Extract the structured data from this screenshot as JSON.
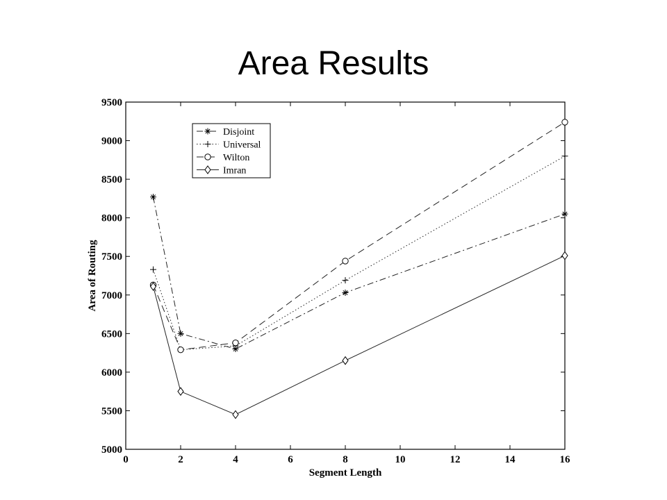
{
  "slide": {
    "title": "Area Results"
  },
  "chart_data": {
    "type": "line",
    "title": "",
    "xlabel": "Segment Length",
    "ylabel": "Area of Routing",
    "xlim": [
      0,
      16
    ],
    "ylim": [
      5000,
      9500
    ],
    "xticks": [
      0,
      2,
      4,
      6,
      8,
      10,
      12,
      14,
      16
    ],
    "yticks": [
      5000,
      5500,
      6000,
      6500,
      7000,
      7500,
      8000,
      8500,
      9000,
      9500
    ],
    "grid": false,
    "legend_position": "top-left",
    "series": [
      {
        "name": "Disjoint",
        "marker": "star",
        "line": "dash-dot",
        "x": [
          1,
          2,
          4,
          8,
          16
        ],
        "y": [
          8270,
          6500,
          6300,
          7030,
          8050
        ]
      },
      {
        "name": "Universal",
        "marker": "plus",
        "line": "dotted",
        "x": [
          1,
          2,
          4,
          8,
          16
        ],
        "y": [
          7330,
          6290,
          6340,
          7190,
          8800
        ]
      },
      {
        "name": "Wilton",
        "marker": "circle",
        "line": "dashed",
        "x": [
          1,
          2,
          4,
          8,
          16
        ],
        "y": [
          7130,
          6290,
          6380,
          7440,
          9240
        ]
      },
      {
        "name": "Imran",
        "marker": "diamond",
        "line": "solid",
        "x": [
          1,
          2,
          4,
          8,
          16
        ],
        "y": [
          7110,
          5750,
          5450,
          6150,
          7510
        ]
      }
    ]
  }
}
